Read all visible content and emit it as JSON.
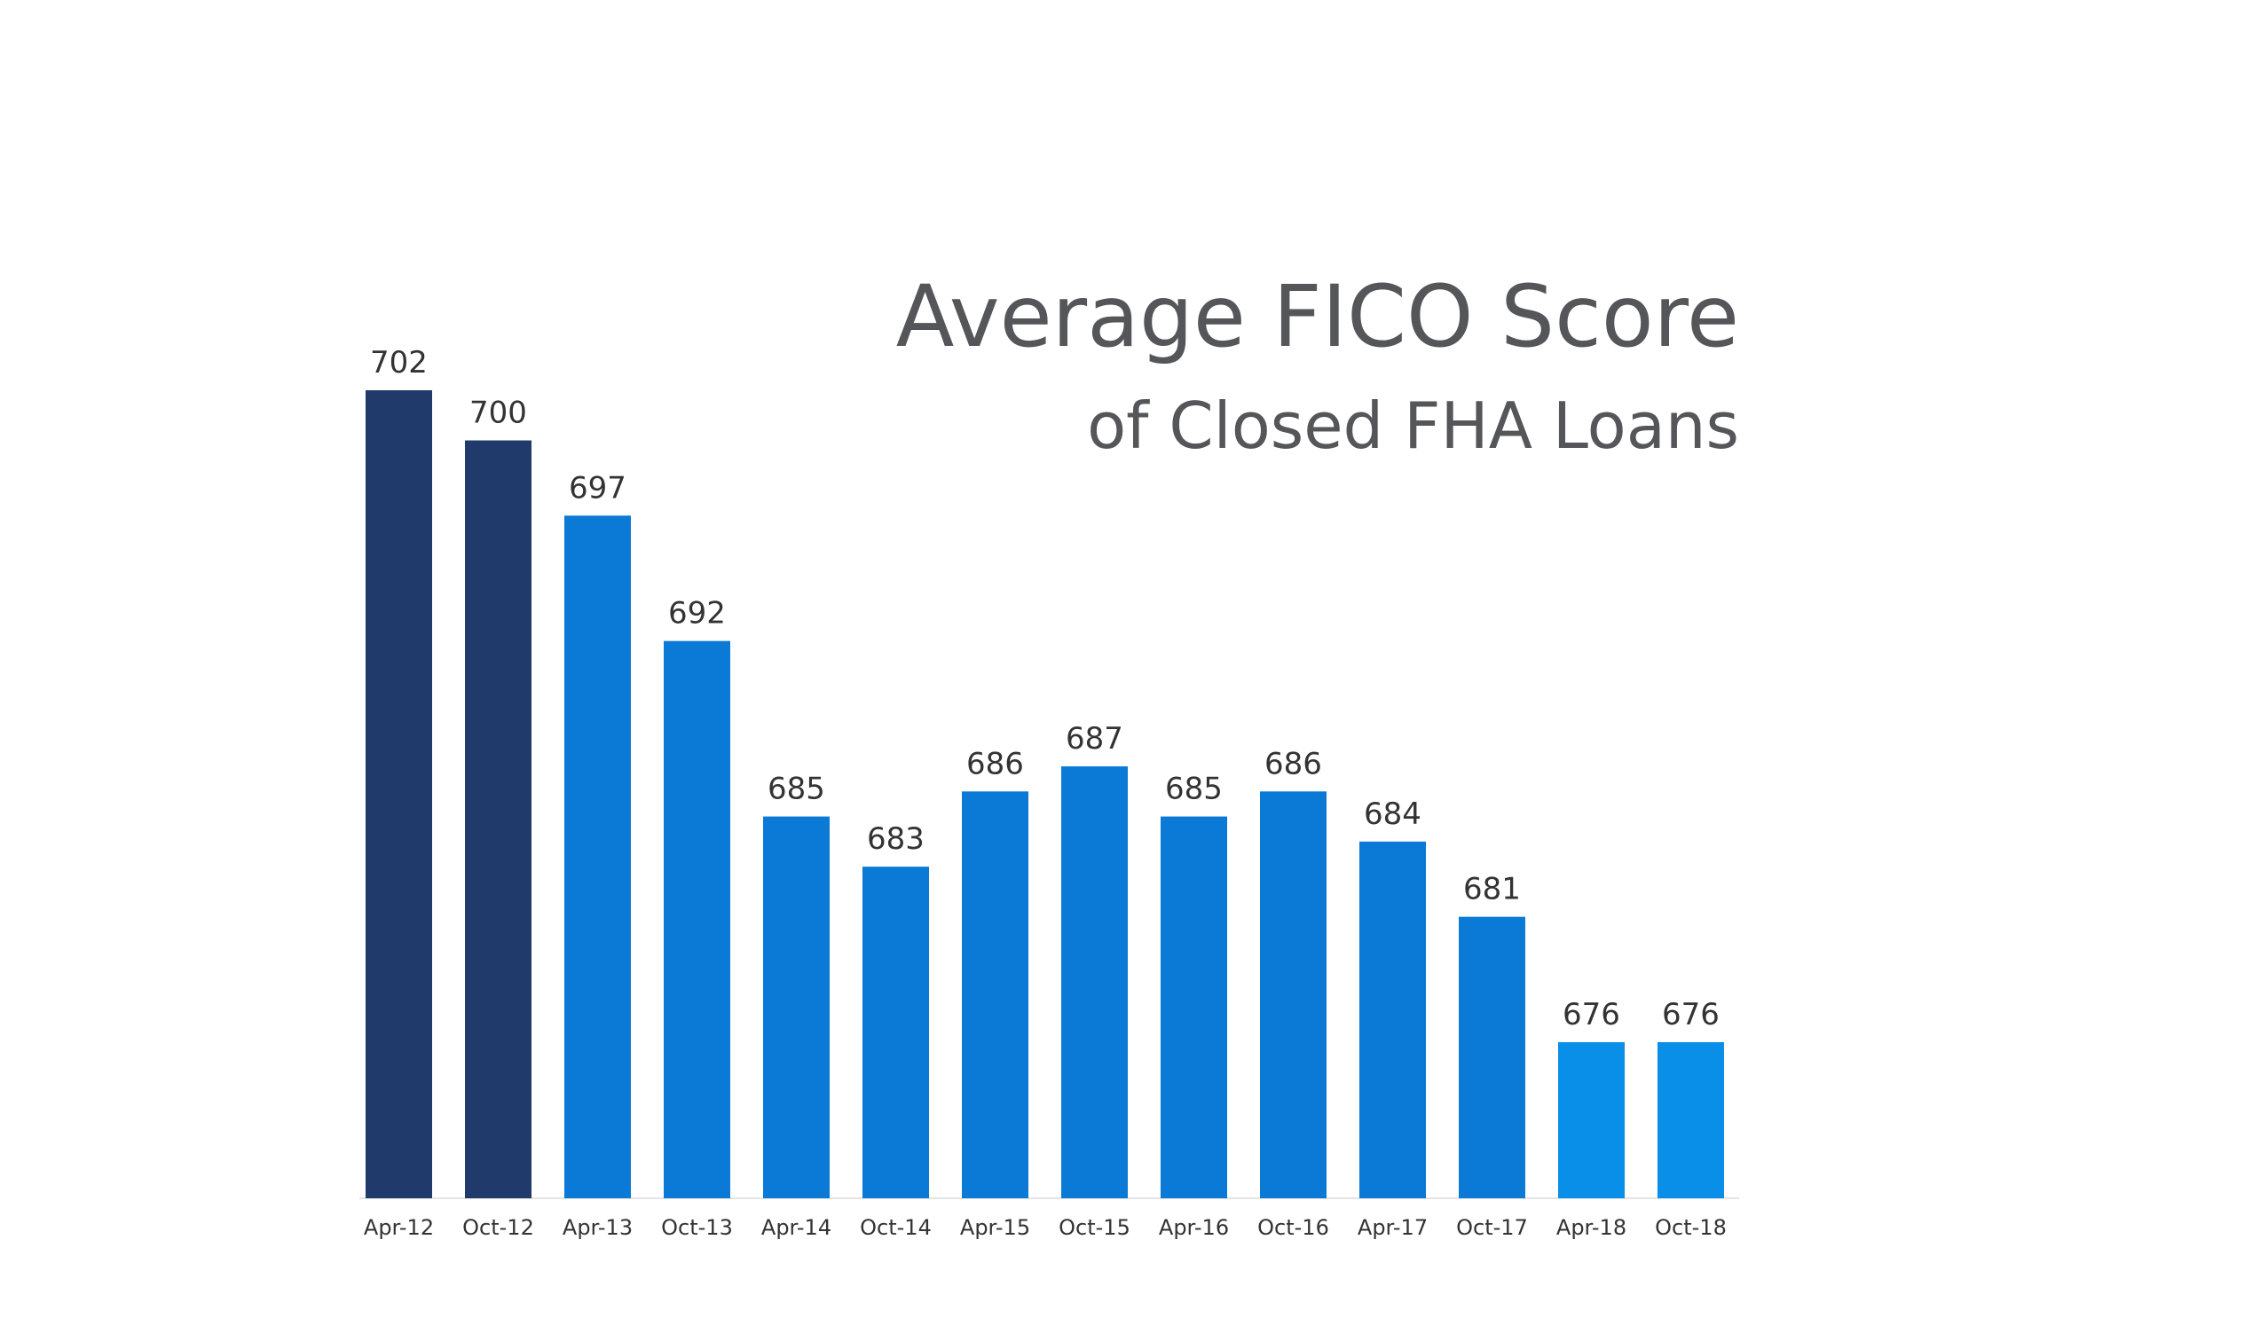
{
  "chart_data": {
    "type": "bar",
    "title": "Average FICO Score",
    "subtitle": "of Closed FHA Loans",
    "xlabel": "",
    "ylabel": "",
    "categories": [
      "Apr-12",
      "Oct-12",
      "Apr-13",
      "Oct-13",
      "Apr-14",
      "Oct-14",
      "Apr-15",
      "Oct-15",
      "Apr-16",
      "Oct-16",
      "Apr-17",
      "Oct-17",
      "Apr-18",
      "Oct-18"
    ],
    "values": [
      702,
      700,
      697,
      692,
      685,
      683,
      686,
      687,
      685,
      686,
      684,
      681,
      676,
      676
    ],
    "bar_colors": [
      "#1f3a6b",
      "#1f3a6b",
      "#0b7ad6",
      "#0b7ad6",
      "#0b7ad6",
      "#0b7ad6",
      "#0b7ad6",
      "#0b7ad6",
      "#0b7ad6",
      "#0b7ad6",
      "#0b7ad6",
      "#0b7ad6",
      "#0a8fe8",
      "#0a8fe8"
    ],
    "ylim": [
      670,
      702
    ],
    "grid": false,
    "legend": "none",
    "data_labels": true
  }
}
